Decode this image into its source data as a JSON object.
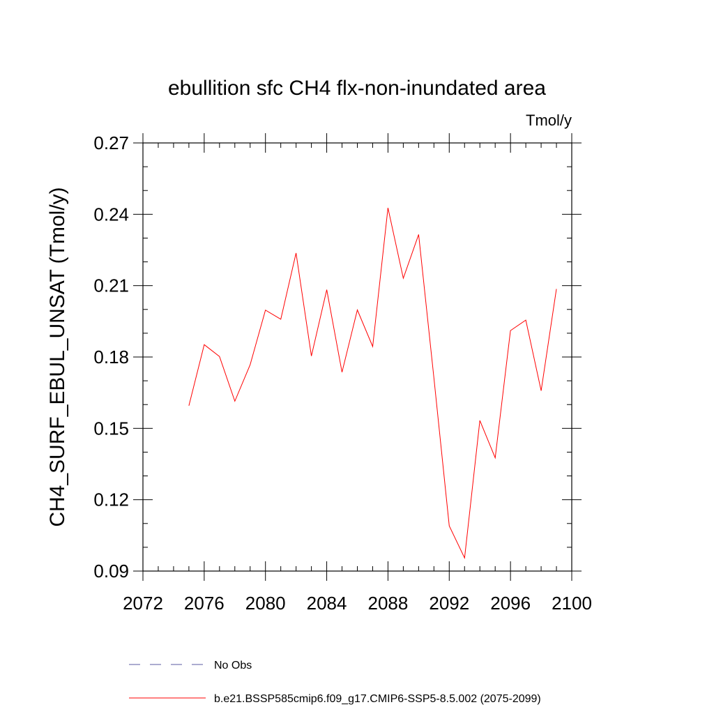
{
  "chart_data": {
    "type": "line",
    "title": "ebullition sfc CH4 flx-non-inundated area",
    "units": "Tmol/y",
    "ylabel": "CH4_SURF_EBUL_UNSAT  (Tmol/y)",
    "xlabel": "",
    "xlim": [
      2072,
      2100
    ],
    "ylim": [
      0.09,
      0.27
    ],
    "xticks": [
      2072,
      2076,
      2080,
      2084,
      2088,
      2092,
      2096,
      2100
    ],
    "yticks": [
      0.09,
      0.12,
      0.15,
      0.18,
      0.21,
      0.24,
      0.27
    ],
    "ytick_labels": [
      "0.09",
      "0.12",
      "0.15",
      "0.18",
      "0.21",
      "0.24",
      "0.27"
    ],
    "grid": false,
    "legend_position": "bottom",
    "series": [
      {
        "name": "No Obs",
        "color": "#5a5aa0",
        "dash": "dashed",
        "x": [],
        "y": []
      },
      {
        "name": "b.e21.BSSP585cmip6.f09_g17.CMIP6-SSP5-8.5.002 (2075-2099)",
        "color": "#ff0000",
        "dash": "solid",
        "x": [
          2075,
          2076,
          2077,
          2078,
          2079,
          2080,
          2081,
          2082,
          2083,
          2084,
          2085,
          2086,
          2087,
          2088,
          2089,
          2090,
          2091,
          2092,
          2093,
          2094,
          2095,
          2096,
          2097,
          2098,
          2099
        ],
        "y": [
          0.1595,
          0.1852,
          0.1802,
          0.1614,
          0.1768,
          0.1997,
          0.1959,
          0.2237,
          0.1804,
          0.2083,
          0.1736,
          0.1998,
          0.1844,
          0.2427,
          0.2131,
          0.2315,
          0.1712,
          0.109,
          0.0955,
          0.1533,
          0.1376,
          0.1911,
          0.1955,
          0.1658,
          0.2086
        ]
      }
    ]
  }
}
